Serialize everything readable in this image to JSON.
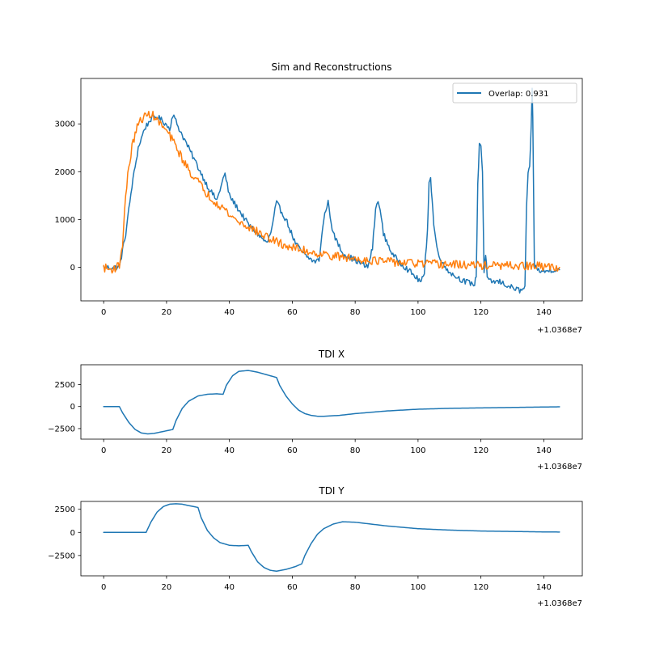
{
  "colors": {
    "tab_blue": "#1f77b4",
    "tab_orange": "#ff7f0e"
  },
  "chart_data": [
    {
      "type": "line",
      "title": "Sim and Reconstructions",
      "xlabel": "",
      "ylabel": "",
      "x_offset_label": "+1.0368e7",
      "xlim": [
        -7.25,
        152.25
      ],
      "ylim": [
        -700,
        3950
      ],
      "xticks": [
        0,
        20,
        40,
        60,
        80,
        100,
        120,
        140
      ],
      "yticks": [
        0,
        1000,
        2000,
        3000
      ],
      "grid": false,
      "legend": {
        "position": "top-right",
        "entries": [
          "Overlap: 0.931"
        ]
      },
      "series": [
        {
          "name": "Overlap: 0.931",
          "color": "#1f77b4",
          "x": [
            0,
            5,
            7,
            9,
            11,
            13,
            15,
            17,
            19,
            21,
            22,
            24,
            27,
            30,
            33,
            36,
            38,
            38.6,
            40,
            43,
            46,
            49,
            52,
            53.5,
            54.5,
            55,
            58,
            61,
            64,
            67,
            68.5,
            70,
            71,
            71.4,
            73,
            76,
            80,
            84,
            85.5,
            86.5,
            87.3,
            87.6,
            89,
            92,
            96,
            100,
            101,
            102,
            103,
            103.5,
            104,
            104.5,
            105,
            106,
            108,
            111,
            115,
            118,
            118.5,
            119,
            119.5,
            120,
            120.5,
            121,
            121.5,
            122,
            122.5,
            126,
            129,
            131,
            133,
            134,
            134.5,
            135,
            135.5,
            136,
            136.3,
            136.5,
            137,
            137.5,
            138,
            140,
            142,
            145
          ],
          "values": [
            0,
            0,
            700,
            1700,
            2500,
            2900,
            3100,
            3150,
            3050,
            2900,
            3200,
            2900,
            2500,
            2100,
            1700,
            1400,
            1850,
            1950,
            1500,
            1200,
            900,
            700,
            500,
            800,
            1200,
            1350,
            1000,
            500,
            250,
            120,
            150,
            1000,
            1300,
            1350,
            700,
            300,
            150,
            0,
            400,
            1200,
            1400,
            1350,
            700,
            250,
            0,
            -250,
            -300,
            -150,
            800,
            1800,
            1850,
            1400,
            900,
            400,
            50,
            -150,
            -300,
            -350,
            -200,
            1700,
            2600,
            2550,
            2000,
            -100,
            300,
            -200,
            -300,
            -300,
            -400,
            -450,
            -500,
            -400,
            1200,
            1950,
            2050,
            3000,
            3700,
            3100,
            100,
            0,
            -50,
            -100,
            -50,
            -50
          ],
          "noise": 60
        },
        {
          "name": "",
          "color": "#ff7f0e",
          "x": [
            0,
            2,
            4,
            5,
            6,
            7,
            8,
            9,
            10,
            11,
            12,
            13,
            14,
            15,
            16,
            18,
            20,
            22,
            24,
            26,
            28,
            30,
            32,
            35,
            38,
            40,
            43,
            46,
            50,
            54,
            58,
            62,
            66,
            70,
            75,
            80,
            85,
            90,
            95,
            100,
            105,
            110,
            115,
            120,
            125,
            130,
            135,
            140,
            145
          ],
          "values": [
            0,
            -50,
            0,
            50,
            500,
            1500,
            2100,
            2500,
            2800,
            2980,
            3100,
            3150,
            3180,
            3220,
            3150,
            3000,
            2850,
            2650,
            2400,
            2150,
            1950,
            1800,
            1600,
            1400,
            1250,
            1100,
            950,
            850,
            700,
            560,
            450,
            380,
            320,
            270,
            220,
            180,
            150,
            120,
            100,
            80,
            70,
            60,
            50,
            40,
            35,
            30,
            25,
            20,
            0
          ],
          "noise": 90
        }
      ]
    },
    {
      "type": "line",
      "title": "TDI X",
      "xlabel": "",
      "ylabel": "",
      "x_offset_label": "+1.0368e7",
      "xlim": [
        -7.25,
        152.25
      ],
      "ylim": [
        -3700,
        4750
      ],
      "xticks": [
        0,
        20,
        40,
        60,
        80,
        100,
        120,
        140
      ],
      "yticks": [
        -2500,
        0,
        2500
      ],
      "grid": false,
      "series": [
        {
          "name": "",
          "color": "#1f77b4",
          "x": [
            0,
            5,
            6,
            8,
            10,
            12,
            14,
            16,
            18,
            20,
            22,
            23,
            25,
            27,
            30,
            33,
            36,
            38,
            39,
            41,
            43,
            46,
            49,
            52,
            55,
            56,
            58,
            60,
            62,
            64,
            66,
            68,
            70,
            75,
            80,
            90,
            100,
            110,
            120,
            130,
            140,
            145
          ],
          "values": [
            0,
            0,
            -700,
            -1800,
            -2600,
            -3000,
            -3100,
            -3050,
            -2900,
            -2750,
            -2600,
            -1600,
            -200,
            600,
            1200,
            1400,
            1450,
            1400,
            2400,
            3500,
            4000,
            4100,
            3900,
            3600,
            3300,
            2400,
            1200,
            300,
            -400,
            -800,
            -1000,
            -1100,
            -1100,
            -1000,
            -800,
            -500,
            -300,
            -200,
            -150,
            -100,
            -50,
            -30
          ],
          "noise": 0
        }
      ]
    },
    {
      "type": "line",
      "title": "TDI Y",
      "xlabel": "",
      "ylabel": "",
      "x_offset_label": "+1.0368e7",
      "xlim": [
        -7.25,
        152.25
      ],
      "ylim": [
        -4700,
        3350
      ],
      "xticks": [
        0,
        20,
        40,
        60,
        80,
        100,
        120,
        140
      ],
      "yticks": [
        -2500,
        0,
        2500
      ],
      "grid": false,
      "series": [
        {
          "name": "",
          "color": "#1f77b4",
          "x": [
            0,
            13.5,
            15,
            17,
            19,
            21,
            23,
            25,
            27,
            30,
            31,
            33,
            35,
            37,
            40,
            43,
            46,
            47,
            49,
            51,
            53,
            55,
            58,
            61,
            63,
            64,
            66,
            68,
            70,
            73,
            76,
            80,
            85,
            90,
            100,
            110,
            120,
            130,
            140,
            145
          ],
          "values": [
            0,
            0,
            1100,
            2200,
            2800,
            3050,
            3100,
            3050,
            2900,
            2700,
            1600,
            200,
            -600,
            -1100,
            -1400,
            -1450,
            -1400,
            -2100,
            -3200,
            -3800,
            -4100,
            -4200,
            -4000,
            -3700,
            -3400,
            -2500,
            -1200,
            -200,
            400,
            900,
            1150,
            1100,
            900,
            700,
            400,
            250,
            150,
            100,
            50,
            40
          ],
          "noise": 0
        }
      ]
    }
  ]
}
